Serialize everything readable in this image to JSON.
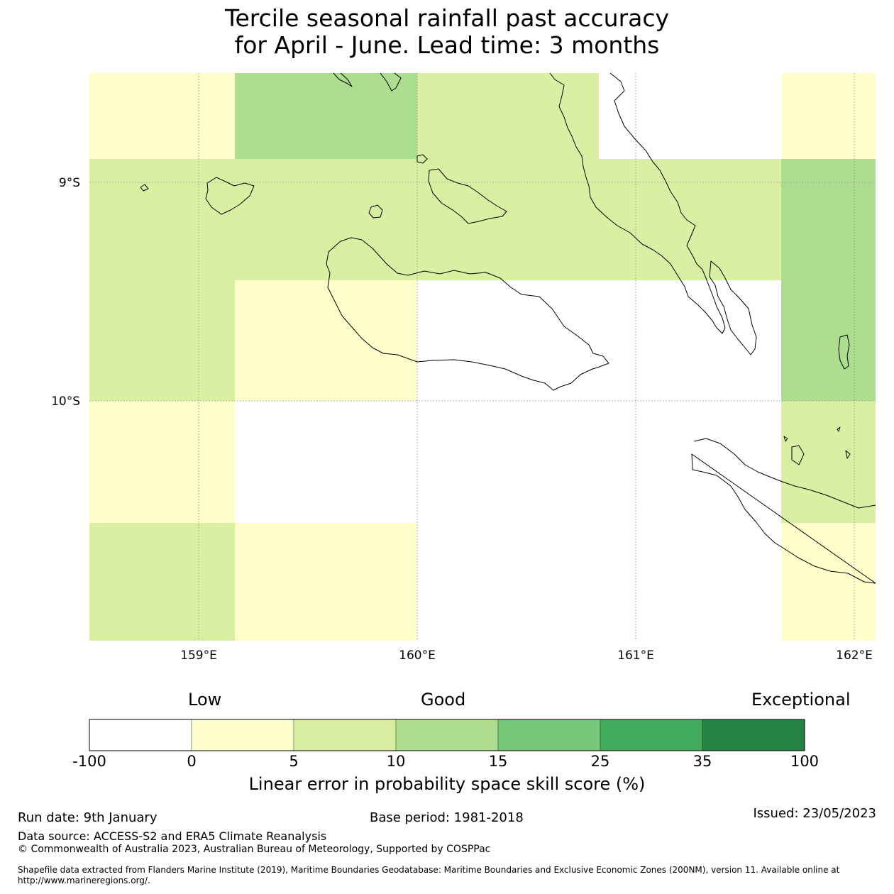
{
  "title_line1": "Tercile seasonal rainfall past accuracy",
  "title_line2": "for April - June. Lead time: 3 months",
  "map": {
    "lat_ticks": [
      "9°S",
      "10°S"
    ],
    "lon_ticks": [
      "159°E",
      "160°E",
      "161°E",
      "162°E"
    ],
    "gridline_color": "#999999",
    "coastline_color": "#000000",
    "cell_skill_classes": [
      [
        "0-5",
        "10-15",
        "5-10",
        "none",
        "0-5"
      ],
      [
        "5-10",
        "5-10",
        "5-10",
        "5-10",
        "10-15"
      ],
      [
        "5-10",
        "0-5",
        "none",
        "none",
        "10-15"
      ],
      [
        "0-5",
        "none",
        "none",
        "none",
        "5-10"
      ],
      [
        "5-10",
        "0-5",
        "none",
        "none",
        "0-5"
      ]
    ]
  },
  "colorbar": {
    "category_labels": [
      "Low",
      "Good",
      "Exceptional"
    ],
    "tick_labels": [
      "-100",
      "0",
      "5",
      "10",
      "15",
      "25",
      "35",
      "100"
    ],
    "colors": [
      "#ffffff",
      "#ffffcc",
      "#d9f0a3",
      "#addd8e",
      "#78c679",
      "#41ab5d",
      "#238443"
    ],
    "axis_label": "Linear error in probability space skill score (%)"
  },
  "footer": {
    "run_date": "Run date: 9th January",
    "base_period": "Base period: 1981-2018",
    "issued": "Issued: 23/05/2023",
    "data_source": "Data source: ACCESS-S2 and ERA5 Climate Reanalysis",
    "copyright": "© Commonwealth of Australia 2023, Australian Bureau of Meteorology, Supported by COSPPac",
    "shapefile": "Shapefile data extracted from Flanders Marine Institute (2019), Maritime Boundaries Geodatabase: Maritime Boundaries and Exclusive Economic Zones (200NM), version 11. Available online at http://www.marineregions.org/."
  }
}
